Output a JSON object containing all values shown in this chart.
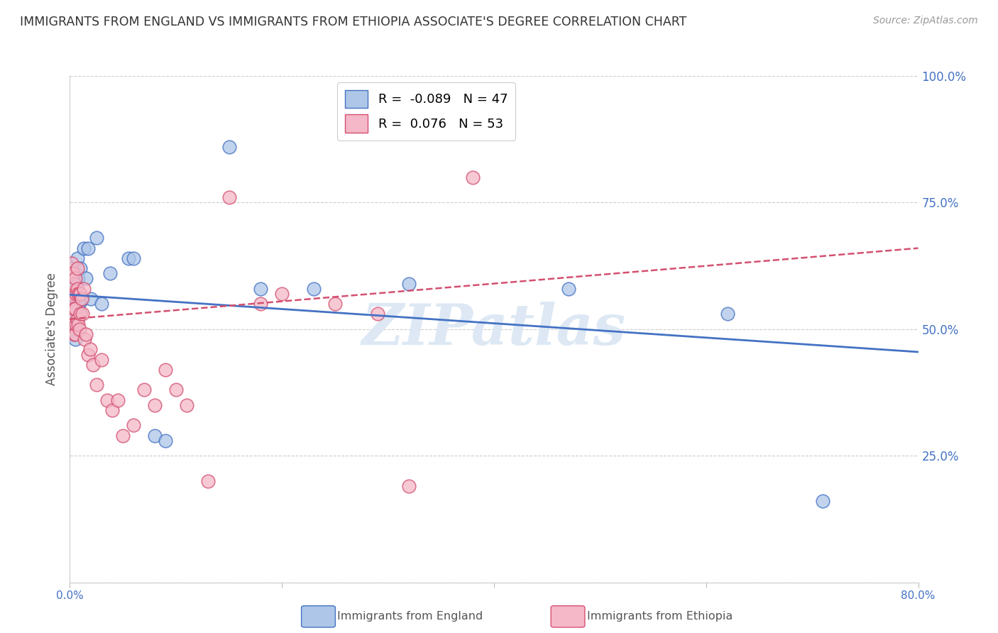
{
  "title": "IMMIGRANTS FROM ENGLAND VS IMMIGRANTS FROM ETHIOPIA ASSOCIATE'S DEGREE CORRELATION CHART",
  "source": "Source: ZipAtlas.com",
  "ylabel": "Associate's Degree",
  "xlim": [
    0.0,
    0.8
  ],
  "ylim": [
    0.0,
    1.0
  ],
  "ytick_labels_right": [
    "100.0%",
    "75.0%",
    "50.0%",
    "25.0%"
  ],
  "yticks_right": [
    1.0,
    0.75,
    0.5,
    0.25
  ],
  "england_R": -0.089,
  "england_N": 47,
  "ethiopia_R": 0.076,
  "ethiopia_N": 53,
  "england_color": "#aec6e8",
  "england_line_color": "#4472c4",
  "ethiopia_color": "#f4b8c8",
  "ethiopia_line_color": "#d45070",
  "watermark": "ZIPatlas",
  "watermark_color": "#dde8f4",
  "england_x": [
    0.001,
    0.001,
    0.001,
    0.002,
    0.002,
    0.002,
    0.002,
    0.003,
    0.003,
    0.003,
    0.003,
    0.004,
    0.004,
    0.004,
    0.005,
    0.005,
    0.005,
    0.006,
    0.006,
    0.006,
    0.007,
    0.007,
    0.008,
    0.008,
    0.009,
    0.01,
    0.01,
    0.011,
    0.012,
    0.013,
    0.015,
    0.017,
    0.02,
    0.025,
    0.03,
    0.038,
    0.055,
    0.06,
    0.08,
    0.09,
    0.15,
    0.18,
    0.23,
    0.32,
    0.47,
    0.62,
    0.71
  ],
  "england_y": [
    0.535,
    0.555,
    0.58,
    0.51,
    0.54,
    0.56,
    0.62,
    0.5,
    0.53,
    0.57,
    0.61,
    0.49,
    0.545,
    0.58,
    0.48,
    0.53,
    0.61,
    0.5,
    0.56,
    0.59,
    0.52,
    0.64,
    0.545,
    0.6,
    0.53,
    0.555,
    0.62,
    0.56,
    0.56,
    0.66,
    0.6,
    0.66,
    0.56,
    0.68,
    0.55,
    0.61,
    0.64,
    0.64,
    0.29,
    0.28,
    0.86,
    0.58,
    0.58,
    0.59,
    0.58,
    0.53,
    0.16
  ],
  "ethiopia_x": [
    0.001,
    0.001,
    0.002,
    0.002,
    0.002,
    0.003,
    0.003,
    0.003,
    0.004,
    0.004,
    0.004,
    0.005,
    0.005,
    0.005,
    0.006,
    0.006,
    0.007,
    0.007,
    0.007,
    0.008,
    0.008,
    0.009,
    0.009,
    0.01,
    0.01,
    0.011,
    0.012,
    0.013,
    0.014,
    0.015,
    0.017,
    0.019,
    0.022,
    0.025,
    0.03,
    0.035,
    0.04,
    0.045,
    0.05,
    0.06,
    0.07,
    0.08,
    0.09,
    0.1,
    0.11,
    0.13,
    0.15,
    0.18,
    0.2,
    0.25,
    0.29,
    0.32,
    0.38
  ],
  "ethiopia_y": [
    0.57,
    0.61,
    0.53,
    0.57,
    0.63,
    0.51,
    0.56,
    0.61,
    0.49,
    0.54,
    0.59,
    0.49,
    0.54,
    0.6,
    0.51,
    0.57,
    0.52,
    0.58,
    0.62,
    0.51,
    0.57,
    0.5,
    0.57,
    0.53,
    0.57,
    0.56,
    0.53,
    0.58,
    0.48,
    0.49,
    0.45,
    0.46,
    0.43,
    0.39,
    0.44,
    0.36,
    0.34,
    0.36,
    0.29,
    0.31,
    0.38,
    0.35,
    0.42,
    0.38,
    0.35,
    0.2,
    0.76,
    0.55,
    0.57,
    0.55,
    0.53,
    0.19,
    0.8
  ],
  "eng_line_x0": 0.0,
  "eng_line_y0": 0.568,
  "eng_line_x1": 0.8,
  "eng_line_y1": 0.455,
  "eth_line_x0": 0.0,
  "eth_line_y0": 0.52,
  "eth_line_x1": 0.8,
  "eth_line_y1": 0.66
}
